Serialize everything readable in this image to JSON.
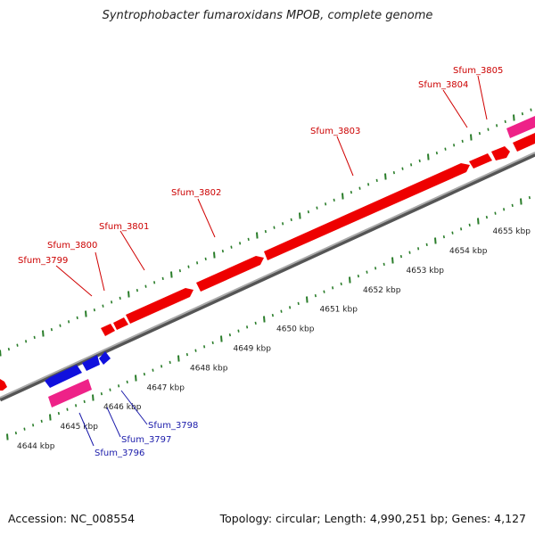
{
  "title": "Syntrophobacter fumaroxidans MPOB, complete genome",
  "footer": {
    "accession": "Accession: NC_008554",
    "summary": "Topology: circular; Length: 4,990,251 bp; Genes: 4,127"
  },
  "colors": {
    "forward_gene": "#ee0000",
    "reverse_gene": "#1010dd",
    "feature_pink": "#ee2288",
    "backbone": "#8a8a8a",
    "ticks": "#2a7d2a",
    "label_forward": "#cc0000",
    "label_reverse": "#1a1aaa"
  },
  "scale_labels": [
    "4644 kbp",
    "4645 kbp",
    "4646 kbp",
    "4647 kbp",
    "4648 kbp",
    "4649 kbp",
    "4650 kbp",
    "4651 kbp",
    "4652 kbp",
    "4653 kbp",
    "4654 kbp",
    "4655 kbp"
  ],
  "gene_labels": {
    "forward": [
      "Sfum_3799",
      "Sfum_3800",
      "Sfum_3801",
      "Sfum_3802",
      "Sfum_3803",
      "Sfum_3804",
      "Sfum_3805"
    ],
    "reverse": [
      "Sfum_3796",
      "Sfum_3797",
      "Sfum_3798"
    ]
  }
}
